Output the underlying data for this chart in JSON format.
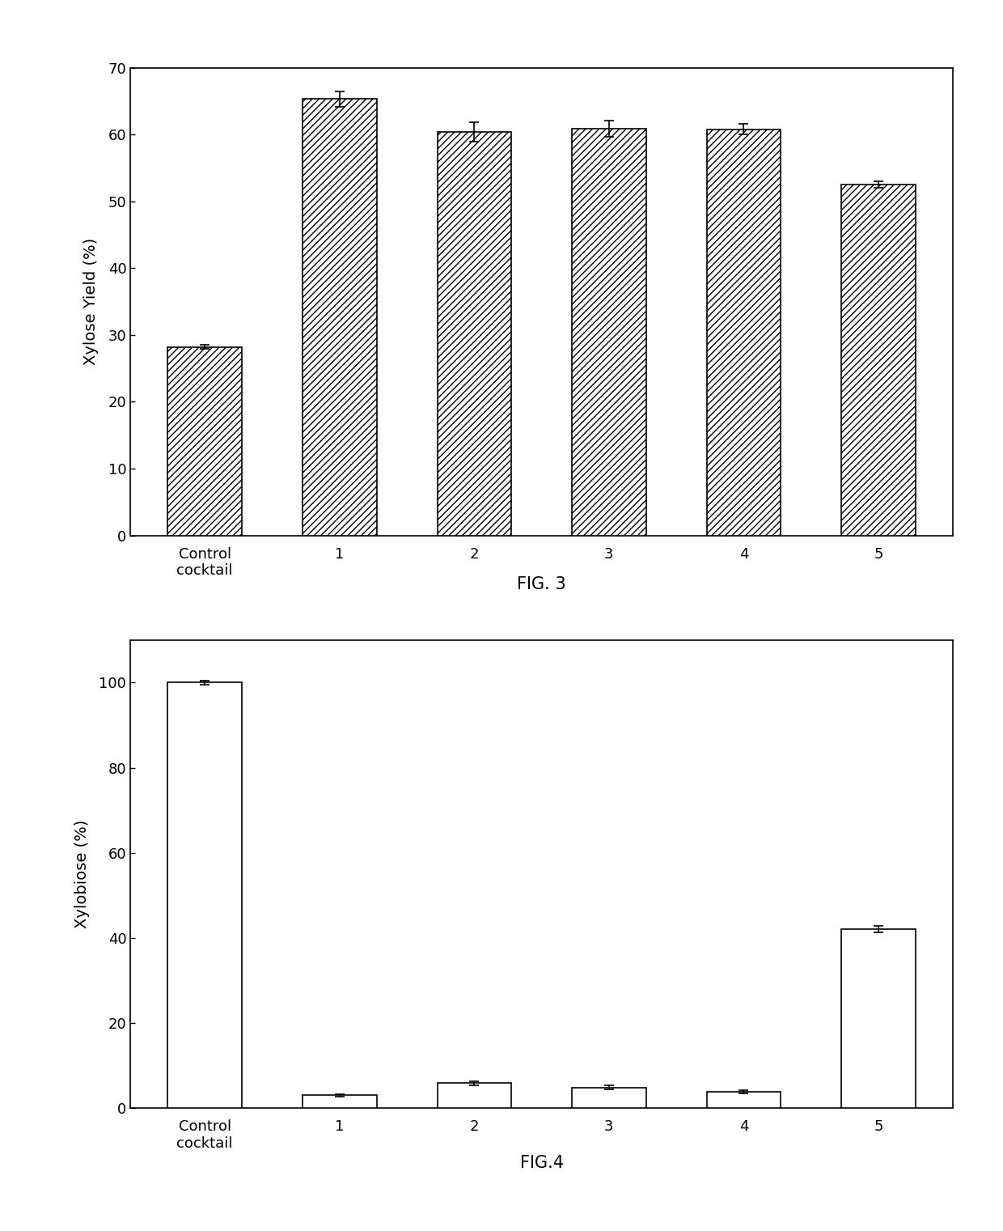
{
  "fig3": {
    "categories": [
      "Control\ncocktail",
      "1",
      "2",
      "3",
      "4",
      "5"
    ],
    "values": [
      28.2,
      65.3,
      60.4,
      60.9,
      60.8,
      52.5
    ],
    "errors": [
      0.3,
      1.2,
      1.5,
      1.2,
      0.8,
      0.5
    ],
    "ylabel": "Xylose Yield (%)",
    "ylim": [
      0,
      70
    ],
    "yticks": [
      0,
      10,
      20,
      30,
      40,
      50,
      60,
      70
    ],
    "caption": "FIG. 3",
    "hatch": "////",
    "bar_color": "white",
    "bar_edgecolor": "black"
  },
  "fig4": {
    "categories": [
      "Control\ncocktail",
      "1",
      "2",
      "3",
      "4",
      "5"
    ],
    "values": [
      100.0,
      3.0,
      5.8,
      4.8,
      3.8,
      42.0
    ],
    "errors": [
      0.5,
      0.3,
      0.5,
      0.5,
      0.3,
      0.8
    ],
    "ylabel": "Xylobiose (%)",
    "ylim": [
      0,
      110
    ],
    "yticks": [
      0,
      20,
      40,
      60,
      80,
      100
    ],
    "caption": "FIG.4",
    "hatch": "",
    "bar_color": "white",
    "bar_edgecolor": "black"
  }
}
